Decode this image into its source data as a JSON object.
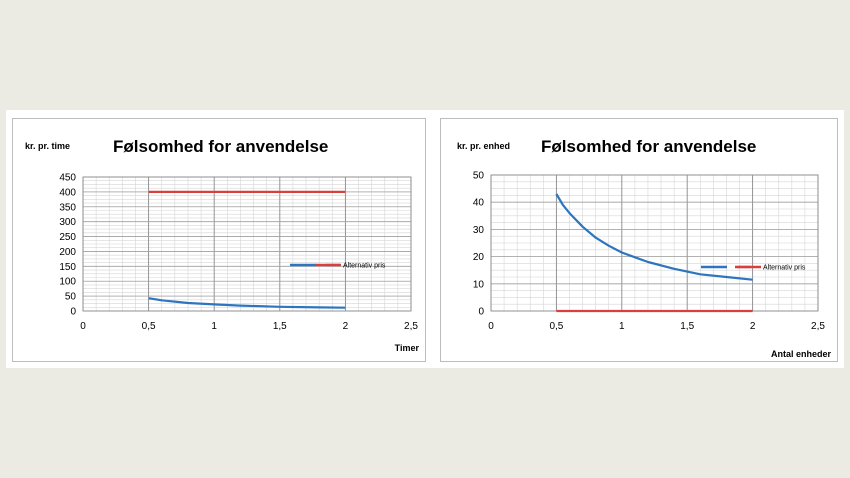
{
  "chart_data": [
    {
      "type": "line",
      "title": "Følsomhed for anvendelse",
      "ylabel": "kr. pr. time",
      "xlabel": "Timer",
      "xlim": [
        0,
        2.5
      ],
      "ylim": [
        0,
        450
      ],
      "x_ticks": [
        "0",
        "0,5",
        "1",
        "1,5",
        "2",
        "2,5"
      ],
      "y_ticks": [
        "0",
        "50",
        "100",
        "150",
        "200",
        "250",
        "300",
        "350",
        "400",
        "450"
      ],
      "grid": true,
      "legend_position": "right",
      "series": [
        {
          "name": "",
          "color": "#2e75c0",
          "x": [
            0.5,
            0.6,
            0.8,
            1.0,
            1.2,
            1.5,
            1.8,
            2.0
          ],
          "y": [
            43,
            36,
            27,
            22,
            18,
            14,
            12,
            11
          ]
        },
        {
          "name": "Alternativ pris",
          "color": "#d9403b",
          "x": [
            0.5,
            2.0
          ],
          "y": [
            400,
            400
          ]
        }
      ]
    },
    {
      "type": "line",
      "title": "Følsomhed for anvendelse",
      "ylabel": "kr. pr.  enhed",
      "xlabel": "Antal enheder",
      "xlim": [
        0,
        2.5
      ],
      "ylim": [
        0,
        50
      ],
      "x_ticks": [
        "0",
        "0,5",
        "1",
        "1,5",
        "2",
        "2,5"
      ],
      "y_ticks": [
        "0",
        "10",
        "20",
        "30",
        "40",
        "50"
      ],
      "grid": true,
      "legend_position": "right",
      "series": [
        {
          "name": "",
          "color": "#2e75c0",
          "x": [
            0.5,
            0.55,
            0.6,
            0.7,
            0.8,
            0.9,
            1.0,
            1.2,
            1.4,
            1.6,
            1.8,
            2.0
          ],
          "y": [
            43,
            39,
            36,
            31,
            27,
            24,
            21.5,
            18,
            15.5,
            13.5,
            12.5,
            11.5
          ]
        },
        {
          "name": "Alternativ pris",
          "color": "#d9403b",
          "x": [
            0.5,
            2.0
          ],
          "y": [
            0,
            0
          ]
        }
      ]
    }
  ]
}
